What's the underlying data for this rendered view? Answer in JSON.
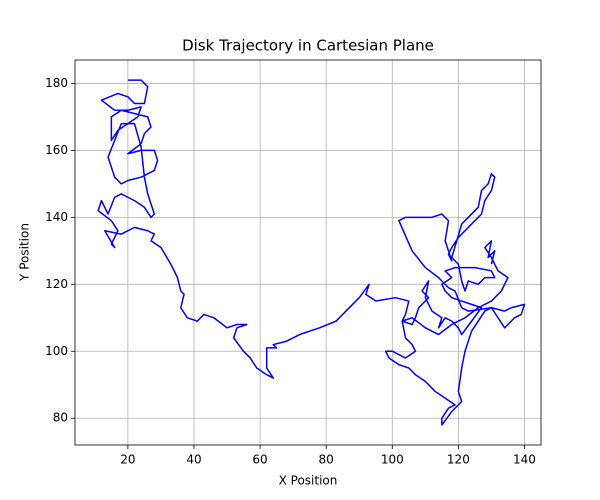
{
  "chart_data": {
    "type": "line",
    "title": "Disk Trajectory in Cartesian Plane",
    "xlabel": "X Position",
    "ylabel": "Y Position",
    "x": [
      20,
      24,
      26,
      25,
      22,
      20,
      17,
      12,
      16,
      20,
      24,
      23,
      20,
      17,
      15,
      15,
      18,
      26,
      27,
      25,
      24,
      20,
      24,
      28,
      29,
      28,
      24,
      20,
      18,
      16,
      14,
      16,
      18,
      22,
      24,
      25,
      26,
      28,
      27,
      25,
      22,
      18,
      16,
      14,
      12,
      11,
      15,
      17,
      15,
      16,
      13,
      18,
      22,
      26,
      28,
      27,
      30,
      33,
      35,
      36,
      37,
      36,
      38,
      41,
      43,
      46,
      50,
      53,
      56,
      53,
      52,
      55,
      57,
      59,
      62,
      64,
      62,
      62,
      65,
      64,
      68,
      72,
      78,
      83,
      86,
      90,
      93,
      92,
      95,
      101,
      105,
      104,
      103,
      106,
      107,
      108,
      111,
      109,
      111,
      110,
      112,
      115,
      114,
      116,
      118,
      120,
      121,
      124,
      127,
      124,
      121,
      118,
      116,
      115,
      118,
      116,
      119,
      125,
      130,
      131,
      128,
      126,
      123,
      122,
      121,
      120,
      118,
      121,
      126,
      127,
      129,
      130,
      131,
      130,
      128,
      127,
      124,
      120,
      118,
      117,
      118,
      116,
      117,
      115,
      112,
      104,
      102,
      106,
      110,
      114,
      117,
      119,
      121,
      123,
      130,
      134,
      136,
      140,
      139,
      137,
      134,
      130,
      128,
      124,
      122,
      121,
      120,
      121,
      118,
      115,
      115,
      117,
      119,
      116,
      113,
      110,
      107,
      105,
      102,
      99,
      98,
      100,
      104,
      107,
      106,
      104,
      103,
      106,
      110,
      114,
      118,
      122,
      126,
      130,
      133,
      135,
      132,
      130,
      128,
      130,
      129,
      131,
      130
    ],
    "series": [
      {
        "color": "#0000ff",
        "values": [
          181,
          181,
          179,
          174,
          174,
          176,
          177,
          175,
          172,
          172,
          173,
          170,
          168,
          166,
          163,
          170,
          172,
          170,
          167,
          165,
          162,
          159,
          160,
          160,
          157,
          154,
          152,
          151,
          150,
          152,
          158,
          163,
          168,
          168,
          161,
          152,
          147,
          141,
          140,
          143,
          145,
          147,
          146,
          141,
          145,
          142,
          139,
          136,
          132,
          131,
          136,
          135,
          137,
          136,
          135,
          133,
          131,
          126,
          122,
          118,
          117,
          113,
          110,
          109,
          111,
          110,
          107,
          108,
          108,
          107,
          104,
          100,
          98,
          95,
          93,
          92,
          95,
          101,
          101,
          102,
          103,
          105,
          107,
          109,
          112,
          116,
          120,
          117,
          115,
          116,
          115,
          111,
          109,
          108,
          110,
          113,
          116,
          118,
          121,
          116,
          112,
          110,
          107,
          110,
          109,
          107,
          105,
          109,
          113,
          114,
          115,
          116,
          118,
          120,
          122,
          124,
          125,
          125,
          124,
          122,
          122,
          120,
          121,
          118,
          121,
          126,
          128,
          138,
          143,
          148,
          150,
          153,
          152,
          148,
          145,
          141,
          138,
          134,
          131,
          129,
          127,
          133,
          139,
          141,
          140,
          140,
          139,
          130,
          125,
          122,
          119,
          118,
          113,
          112,
          113,
          112,
          113,
          114,
          111,
          110,
          107,
          113,
          112,
          106,
          100,
          95,
          88,
          85,
          82,
          78,
          80,
          83,
          84,
          86,
          88,
          91,
          93,
          95,
          96,
          98,
          100,
          100,
          98,
          100,
          102,
          104,
          109,
          110,
          107,
          105,
          108,
          110,
          113,
          115,
          118,
          122,
          124,
          128,
          131,
          133,
          128,
          130,
          126
        ]
      }
    ],
    "xlim": [
      4,
      145
    ],
    "ylim": [
      72,
      187
    ],
    "xticks": [
      20,
      40,
      60,
      80,
      100,
      120,
      140
    ],
    "yticks": [
      80,
      100,
      120,
      140,
      160,
      180
    ],
    "grid": true
  }
}
